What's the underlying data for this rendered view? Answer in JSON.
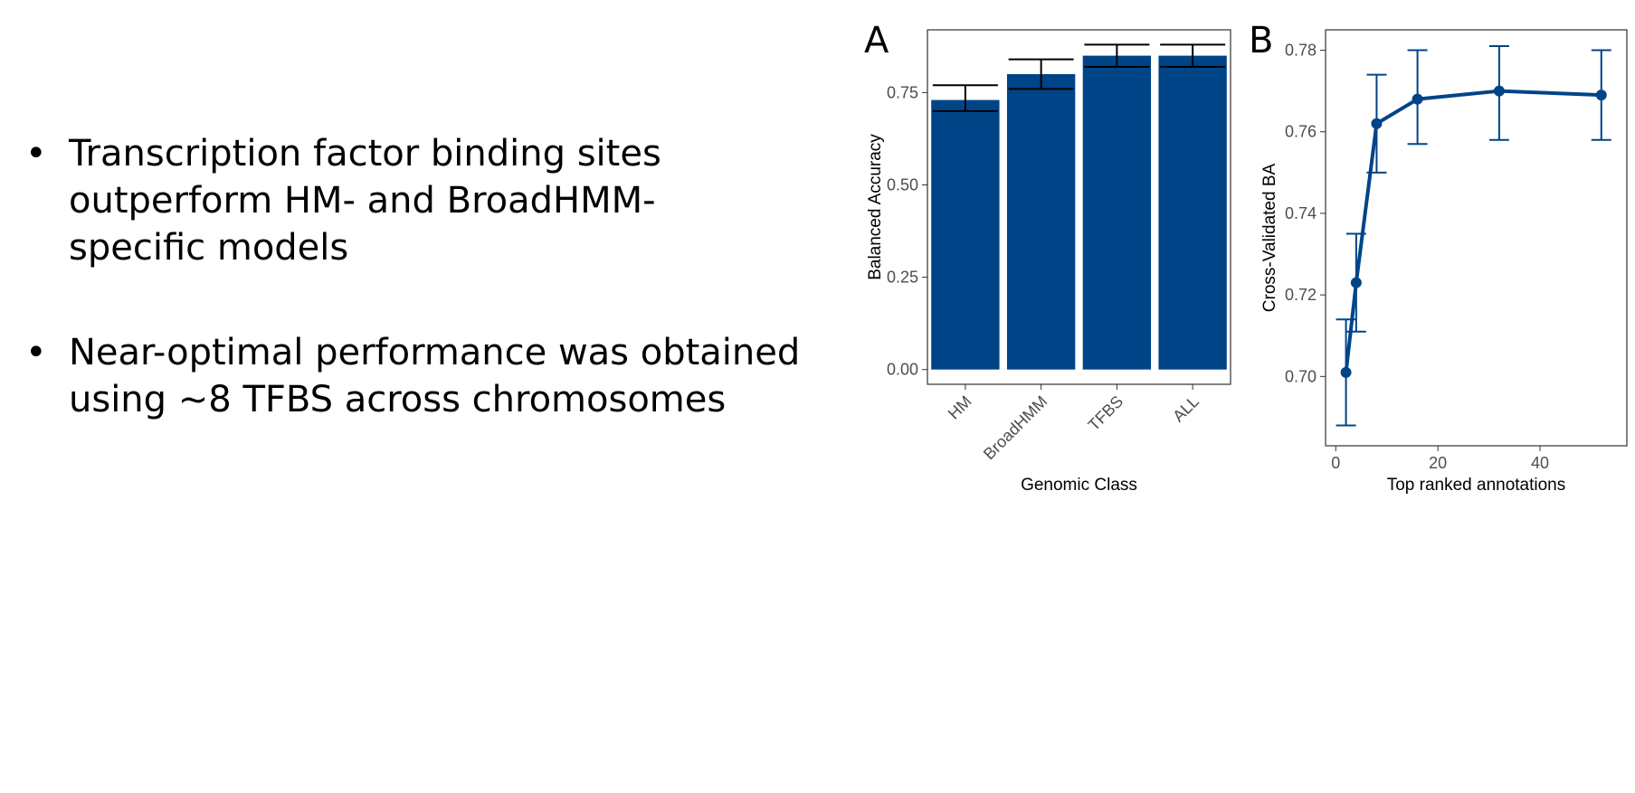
{
  "bullets": [
    {
      "lines": [
        "Transcription factor binding sites",
        "outperform HM- and BroadHMM-",
        "specific models"
      ]
    },
    {
      "lines": [
        "Near-optimal performance was obtained",
        "using ~8 TFBS across chromosomes"
      ]
    }
  ],
  "bullet_glyph": "•",
  "panels": {
    "a": "A",
    "b": "B"
  },
  "colors": {
    "bar": "#004488",
    "line": "#004488",
    "error": "#000000"
  },
  "chart_data": [
    {
      "type": "bar",
      "panel": "A",
      "categories": [
        "HM",
        "BroadHMM",
        "TFBS",
        "ALL"
      ],
      "values": [
        0.73,
        0.8,
        0.85,
        0.85
      ],
      "error_low": [
        0.7,
        0.76,
        0.82,
        0.82
      ],
      "error_high": [
        0.77,
        0.84,
        0.88,
        0.88
      ],
      "xlabel": "Genomic Class",
      "ylabel": "Balanced Accuracy",
      "yticks": [
        "0.00",
        "0.25",
        "0.50",
        "0.75"
      ],
      "ylim": [
        -0.04,
        0.92
      ]
    },
    {
      "type": "line",
      "panel": "B",
      "x": [
        2,
        4,
        8,
        16,
        32,
        52
      ],
      "y": [
        0.701,
        0.723,
        0.762,
        0.768,
        0.77,
        0.769
      ],
      "error_low": [
        0.688,
        0.711,
        0.75,
        0.757,
        0.758,
        0.758
      ],
      "error_high": [
        0.714,
        0.735,
        0.774,
        0.78,
        0.781,
        0.78
      ],
      "xlabel": "Top ranked annotations",
      "ylabel": "Cross-Validated BA",
      "xticks": [
        "0",
        "20",
        "40"
      ],
      "yticks": [
        "0.70",
        "0.72",
        "0.74",
        "0.76",
        "0.78"
      ],
      "xlim": [
        -2,
        57
      ],
      "ylim": [
        0.683,
        0.785
      ]
    }
  ]
}
